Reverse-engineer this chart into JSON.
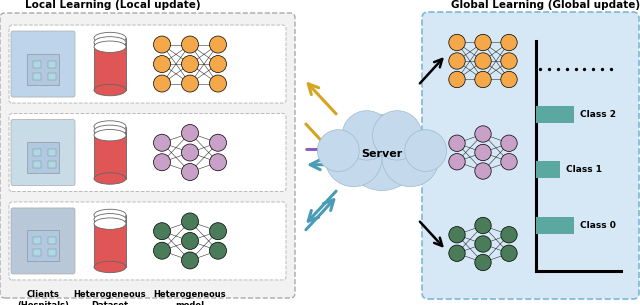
{
  "title_local": "Local Learning (Local update)",
  "title_global": "Global Learning (Global update)",
  "label_clients": "Clients\n(Hospitals)",
  "label_dataset": "Heterogeneous\nDataset",
  "label_model": "Heterogeneous\nmodel",
  "label_server": "Server",
  "label_class2": "Class 2",
  "label_class1": "Class 1",
  "label_class0": "Class 0",
  "color_orange": "#F5A84A",
  "color_pink": "#C9A0C8",
  "color_green_dark": "#4A7C59",
  "color_red_body": "#E05555",
  "color_teal_bar": "#5BA8A0",
  "color_global_bg": "#D6E8F5",
  "color_global_border": "#7EB8D4",
  "color_local_bg": "#F2F2F2",
  "color_local_border": "#AAAAAA",
  "color_arrow_gold": "#D4A520",
  "color_arrow_purple": "#8B5FB8",
  "color_arrow_blue": "#4A9BB5",
  "color_cloud": "#C5D9EC",
  "color_cloud_border": "#9BBCD0",
  "fig_width": 6.4,
  "fig_height": 3.05
}
